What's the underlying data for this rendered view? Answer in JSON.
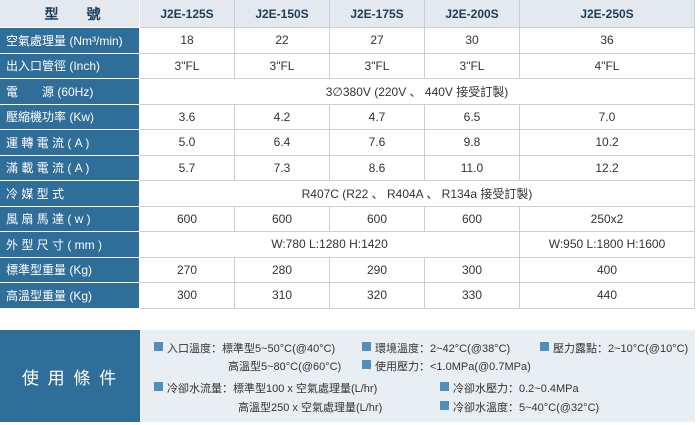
{
  "table": {
    "header": [
      "型　　號",
      "J2E-125S",
      "J2E-150S",
      "J2E-175S",
      "J2E-200S",
      "J2E-250S"
    ],
    "rows": [
      [
        "空氣處理量 (Nm³/min)",
        "18",
        "22",
        "27",
        "30",
        "36"
      ],
      [
        "出入口管徑 (Inch)",
        "3\"FL",
        "3\"FL",
        "3\"FL",
        "3\"FL",
        "4\"FL"
      ],
      [
        "電　　源 (60Hz)",
        "3∅380V (220V 、 440V 接受訂製)"
      ],
      [
        "壓縮機功率 (Kw)",
        "3.6",
        "4.2",
        "4.7",
        "6.5",
        "7.0"
      ],
      [
        "運 轉 電 流 ( A )",
        "5.0",
        "6.4",
        "7.6",
        "9.8",
        "10.2"
      ],
      [
        "滿 載 電 流 ( A )",
        "5.7",
        "7.3",
        "8.6",
        "11.0",
        "12.2"
      ],
      [
        "冷 媒 型 式",
        "R407C (R22 、 R404A 、 R134a 接受訂製)"
      ],
      [
        "風 扇 馬 達 ( w )",
        "600",
        "600",
        "600",
        "600",
        "250x2"
      ],
      [
        "外 型 尺 寸 ( mm )",
        "W:780   L:1280   H:1420",
        "W:950   L:1800   H:1600"
      ],
      [
        "標準型重量 (Kg)",
        "270",
        "280",
        "290",
        "300",
        "400"
      ],
      [
        "高溫型重量 (Kg)",
        "300",
        "310",
        "320",
        "330",
        "440"
      ]
    ]
  },
  "conditions": {
    "title": "使 用 條 件",
    "items": [
      "入口溫度：標準型5~50°C(@40°C)",
      "環境溫度：2~42°C(@38°C)",
      "壓力露點：2~10°C(@10°C)",
      "高溫型5~80°C(@60°C)",
      "使用壓力：<1.0MPa(@0.7MPa)",
      "冷卻水流量：標準型100 x 空氣處理量(L/hr)",
      "冷卻水壓力：0.2~0.4MPa",
      "高溫型250 x 空氣處理量(L/hr)",
      "冷卻水溫度：5~40°C(@32°C)"
    ]
  }
}
